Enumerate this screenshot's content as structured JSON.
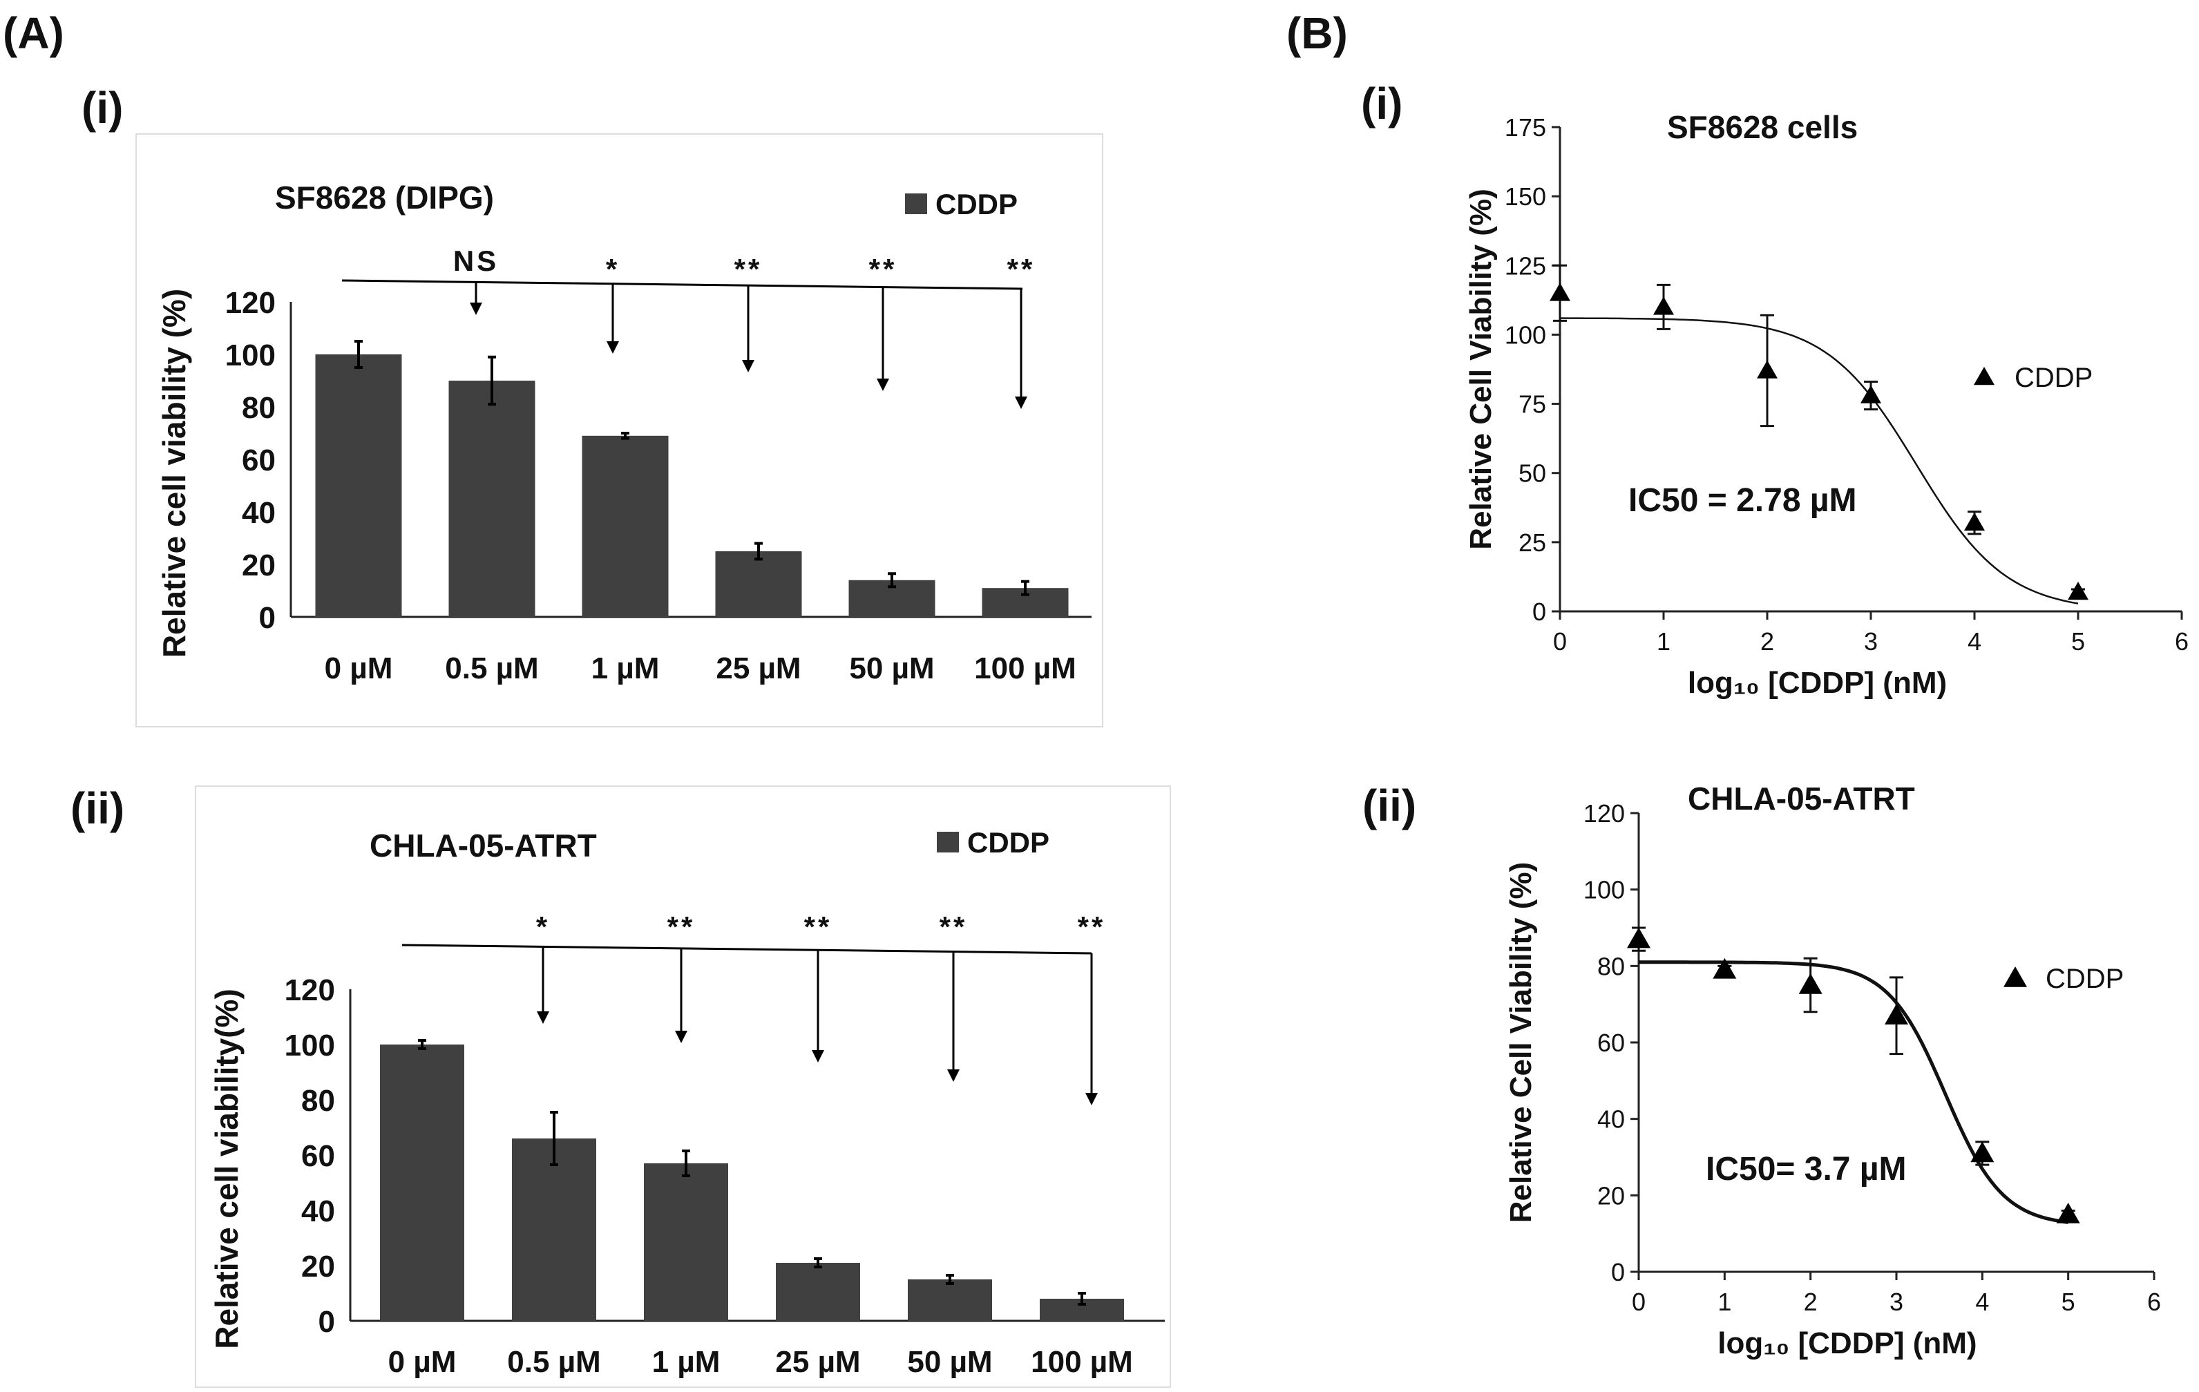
{
  "panel_labels": {
    "A": "(A)",
    "B": "(B)",
    "Ai": "(i)",
    "Aii": "(ii)",
    "Bi": "(i)",
    "Bii": "(ii)"
  },
  "colors": {
    "bar": "#404040",
    "axis": "#222222",
    "text": "#111111",
    "box": "#dddddd"
  },
  "chart_data": [
    {
      "id": "A-i",
      "type": "bar",
      "title": "SF8628 (DIPG)",
      "legend": "CDDP",
      "ylabel": "Relative cell viability (%)",
      "xlabel": "",
      "ylim": [
        0,
        120
      ],
      "yticks": [
        0,
        20,
        40,
        60,
        80,
        100,
        120
      ],
      "categories": [
        "0  µM",
        "0.5  µM",
        "1  µM",
        "25  µM",
        "50  µM",
        "100  µM"
      ],
      "values": [
        100,
        90,
        69,
        25,
        14,
        11
      ],
      "errors": [
        5,
        9,
        1,
        3,
        2.5,
        2.5
      ],
      "significance": [
        "NS",
        "*",
        "**",
        "**",
        "**"
      ]
    },
    {
      "id": "A-ii",
      "type": "bar",
      "title": "CHLA-05-ATRT",
      "legend": "CDDP",
      "ylabel": "Relative cell viability(%)",
      "xlabel": "",
      "ylim": [
        0,
        120
      ],
      "yticks": [
        0,
        20,
        40,
        60,
        80,
        100,
        120
      ],
      "categories": [
        "0  µM",
        "0.5  µM",
        "1  µM",
        "25  µM",
        "50  µM",
        "100  µM"
      ],
      "values": [
        100,
        66,
        57,
        21,
        15,
        8
      ],
      "errors": [
        1.5,
        9.5,
        4.5,
        1.5,
        1.5,
        2
      ],
      "significance": [
        "*",
        "**",
        "**",
        "**",
        "**"
      ]
    },
    {
      "id": "B-i",
      "type": "scatter",
      "title": "SF8628 cells",
      "legend": "CDDP",
      "ylabel": "Relative Cell Viability (%)",
      "xlabel": "log₁₀ [CDDP] (nM)",
      "xlim": [
        0,
        6
      ],
      "ylim": [
        0,
        175
      ],
      "xticks": [
        0,
        1,
        2,
        3,
        4,
        5,
        6
      ],
      "yticks": [
        0,
        25,
        50,
        75,
        100,
        125,
        150,
        175
      ],
      "x": [
        0,
        1,
        2,
        3,
        4,
        5
      ],
      "y": [
        115,
        110,
        87,
        78,
        32,
        7
      ],
      "errors": [
        10,
        8,
        20,
        5,
        4,
        1
      ],
      "fit": {
        "top": 106,
        "bottom": 0,
        "log_ic50": 3.44,
        "hill": 1.0
      },
      "annotation": "IC50 = 2.78 µM"
    },
    {
      "id": "B-ii",
      "type": "scatter",
      "title": "CHLA-05-ATRT",
      "legend": "CDDP",
      "ylabel": "Relative Cell Viability (%)",
      "xlabel": "log₁₀ [CDDP] (nM)",
      "xlim": [
        0,
        6
      ],
      "ylim": [
        0,
        120
      ],
      "xticks": [
        0,
        1,
        2,
        3,
        4,
        5,
        6
      ],
      "yticks": [
        0,
        20,
        40,
        60,
        80,
        100,
        120
      ],
      "x": [
        0,
        1,
        2,
        3,
        4,
        5
      ],
      "y": [
        87,
        79,
        75,
        67,
        31,
        15
      ],
      "errors": [
        3,
        1,
        7,
        10,
        3,
        1
      ],
      "fit": {
        "top": 81,
        "bottom": 12,
        "log_ic50": 3.57,
        "hill": 1.3
      },
      "annotation": "IC50=  3.7 µM"
    }
  ]
}
